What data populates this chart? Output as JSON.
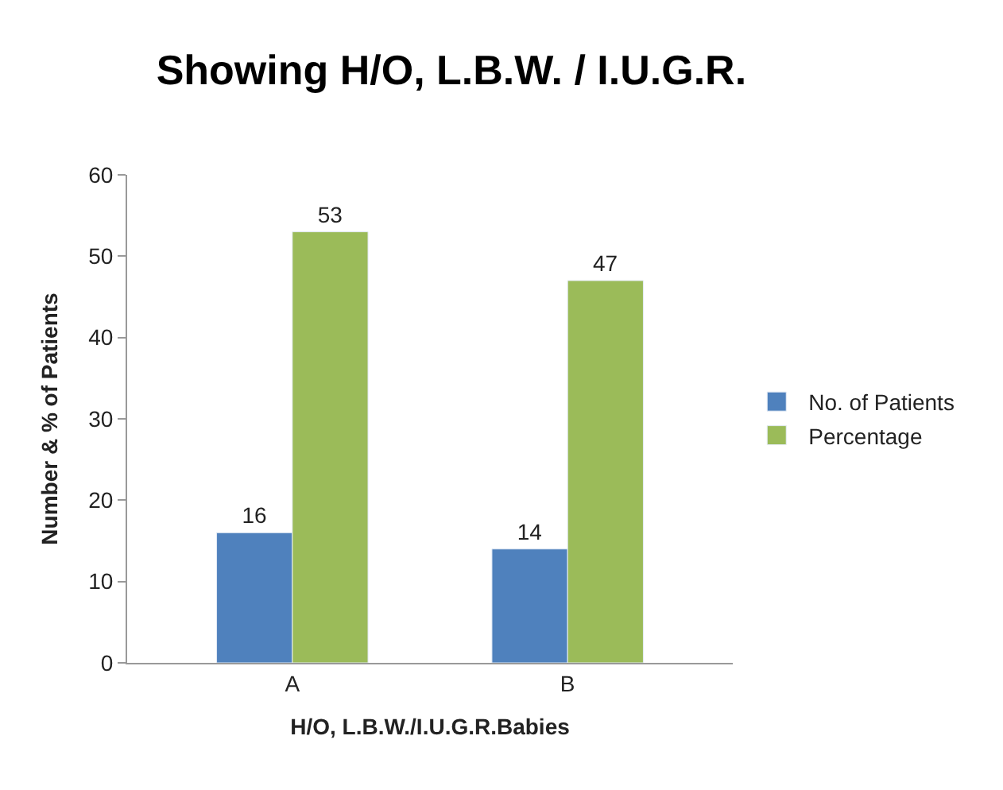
{
  "chart_data": {
    "type": "bar",
    "title": "Showing H/O, L.B.W. / I.U.G.R.",
    "xlabel": "H/O, L.B.W./I.U.G.R.Babies",
    "ylabel": "Number & % of Patients",
    "categories": [
      "A",
      "B"
    ],
    "series": [
      {
        "name": "No. of Patients",
        "color": "#4f81bd",
        "values": [
          16,
          14
        ]
      },
      {
        "name": "Percentage",
        "color": "#9bbb59",
        "values": [
          53,
          47
        ]
      }
    ],
    "ylim": [
      0,
      60
    ],
    "yticks": [
      0,
      10,
      20,
      30,
      40,
      50,
      60
    ],
    "grid": false,
    "legend": "right",
    "data_labels": true
  }
}
